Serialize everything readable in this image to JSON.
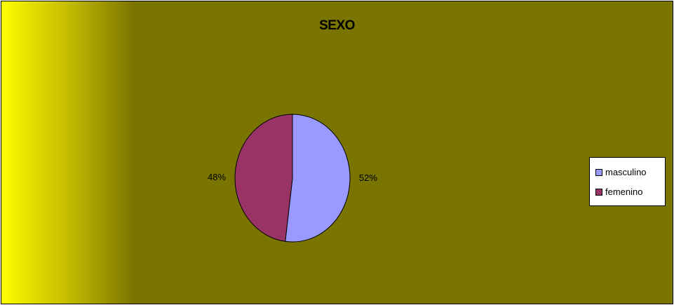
{
  "chart_data": {
    "type": "pie",
    "title": "SEXO",
    "categories": [
      "masculino",
      "femenino"
    ],
    "values": [
      52,
      48
    ],
    "labels": [
      "52%",
      "48%"
    ],
    "colors": [
      "#9999ff",
      "#993366"
    ],
    "legend_position": "right"
  },
  "background": {
    "plot_color": "#7a7400",
    "gradient_start": "#ffff00"
  }
}
